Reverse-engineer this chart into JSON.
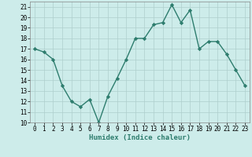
{
  "x": [
    0,
    1,
    2,
    3,
    4,
    5,
    6,
    7,
    8,
    9,
    10,
    11,
    12,
    13,
    14,
    15,
    16,
    17,
    18,
    19,
    20,
    21,
    22,
    23
  ],
  "y": [
    17,
    16.7,
    16,
    13.5,
    12,
    11.5,
    12.2,
    10,
    12.5,
    14.2,
    16,
    18,
    18,
    19.3,
    19.5,
    21.2,
    19.5,
    20.7,
    17,
    17.7,
    17.7,
    16.5,
    15,
    13.5
  ],
  "line_color": "#2e7d6e",
  "marker": "D",
  "marker_size": 2.2,
  "bg_color": "#cdecea",
  "grid_color": "#aecfcc",
  "xlabel": "Humidex (Indice chaleur)",
  "xlim": [
    -0.5,
    23.5
  ],
  "ylim": [
    10,
    21.5
  ],
  "yticks": [
    10,
    11,
    12,
    13,
    14,
    15,
    16,
    17,
    18,
    19,
    20,
    21
  ],
  "xticks": [
    0,
    1,
    2,
    3,
    4,
    5,
    6,
    7,
    8,
    9,
    10,
    11,
    12,
    13,
    14,
    15,
    16,
    17,
    18,
    19,
    20,
    21,
    22,
    23
  ],
  "tick_label_fontsize": 5.5,
  "xlabel_fontsize": 6.5,
  "line_width": 1.0
}
